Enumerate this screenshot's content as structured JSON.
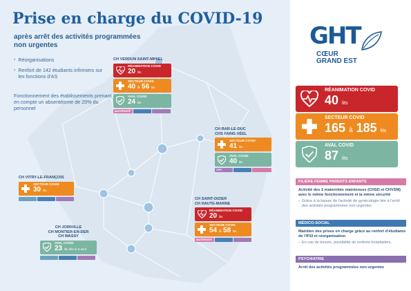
{
  "header": {
    "title": "Prise en charge du COVID-19",
    "subtitle": "après arrêt des activités programmées non urgentes"
  },
  "bullets": [
    "Réorganisations",
    "Renfort de 142 étudiants infirmiers sur les fonctions d'AS"
  ],
  "note": "Fonctionnement des établissements prenant en compte un absentéisme de 20% du personnel",
  "sites": {
    "verdun": {
      "name": "CH VERDUN SAINT-MIHIEL",
      "rea_label": "RÉANIMATION COVID",
      "rea_value": "20",
      "rea_unit": "lits",
      "sect_label": "SECTEUR COVID",
      "sect_from": "40",
      "sect_to": "56",
      "sect_unit": "lits",
      "aval_label": "AVAL COVID",
      "aval_value": "24",
      "aval_unit": "lits",
      "chip": "MATERNITÉ"
    },
    "barleduc": {
      "name_line1": "CH BAR-LE-DUC",
      "name_line2": "CHS FAINS-VÉEL",
      "sect_label": "SECTEUR COVID",
      "sect_value": "41",
      "sect_unit": "lits",
      "aval_label": "AVAL COVID",
      "aval_value": "40",
      "aval_unit": "lits",
      "chip": "CPP"
    },
    "vitry": {
      "name": "CH VITRY-LE-FRANÇOIS",
      "sect_label": "SECTEUR COVID",
      "sect_value": "30",
      "sect_unit": "lits"
    },
    "saintdizier": {
      "name_line1": "CH SAINT-DIZIER",
      "name_line2": "CH HAUTE-MARNE",
      "rea_label": "RÉANIMATION COVID",
      "rea_value": "20",
      "rea_unit": "lits",
      "sect_label": "SECTEUR COVID",
      "sect_from": "54",
      "sect_to": "58",
      "sect_unit": "lits",
      "chip": "MATERNITÉ"
    },
    "joinville": {
      "name_line1": "CH JOINVILLE",
      "name_line2": "CH MONTIER-EN-DER",
      "name_line3": "CH WASSY",
      "aval_label": "AVAL COVID",
      "aval_value": "23",
      "aval_unit": "lits dès le 6 avril"
    }
  },
  "logo": {
    "letters": "GHT",
    "line1": "CŒUR",
    "line2": "GRAND EST"
  },
  "totals": {
    "rea_label": "RÉANIMATION COVID",
    "rea_value": "40",
    "rea_unit": "lits",
    "sect_label": "SECTEUR COVID",
    "sect_from": "165",
    "sect_to": "185",
    "sect_unit": "lits",
    "aval_label": "AVAL COVID",
    "aval_value": "87",
    "aval_unit": "lits",
    "range_sep": "à"
  },
  "sections": [
    {
      "title": "FILIÈRE FEMME PARENTS ENFANTS",
      "text": "Activité des 2 maternités maintenues (CHSD et CHVSM) avec le même fonctionnement et la même sécurité",
      "sub": "Grâce à la baisse de l'activité de gynécologie liée à l'arrêt des activités programmées non urgentes"
    },
    {
      "title": "MÉDICO-SOCIAL",
      "text": "Maintien des prises en charge grâce au renfort d'étudiants de l'IFSI et réorganisation",
      "sub": "En cas de besoin, possibilité de renforts hospitaliers."
    },
    {
      "title": "PSYCHIATRIE",
      "text": "Arrêt des activités programmées non urgentes"
    }
  ],
  "colors": {
    "red": "#c8262b",
    "orange": "#ee8a1f",
    "green": "#7cb5a2",
    "blue": "#1f5f9e"
  }
}
